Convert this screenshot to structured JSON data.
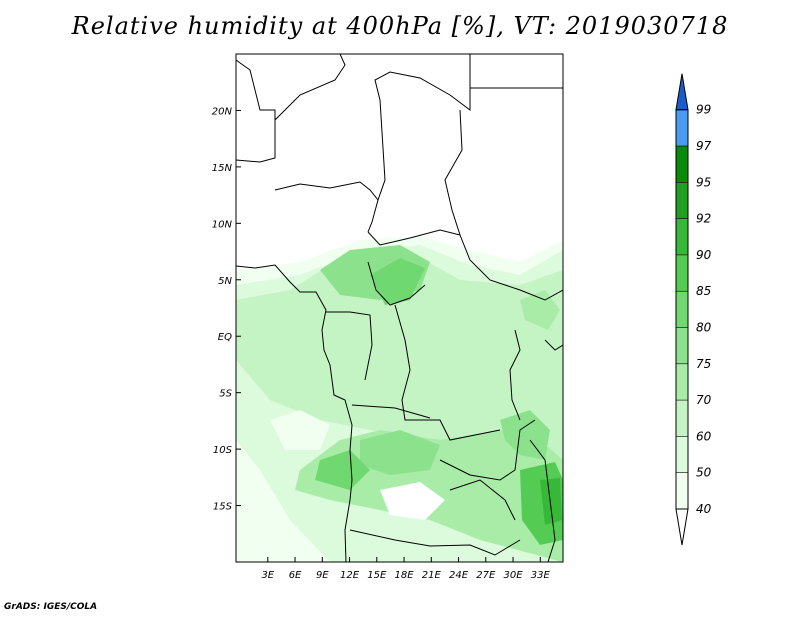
{
  "title": "Relative humidity at 400hPa [%], VT: 2019030718",
  "credit": "GrADS: IGES/COLA",
  "map": {
    "lon_range": [
      -0.5,
      35.5
    ],
    "lat_range": [
      -20,
      25
    ],
    "x_ticks": [
      {
        "value": 3,
        "label": "3E"
      },
      {
        "value": 6,
        "label": "6E"
      },
      {
        "value": 9,
        "label": "9E"
      },
      {
        "value": 12,
        "label": "12E"
      },
      {
        "value": 15,
        "label": "15E"
      },
      {
        "value": 18,
        "label": "18E"
      },
      {
        "value": 21,
        "label": "21E"
      },
      {
        "value": 24,
        "label": "24E"
      },
      {
        "value": 27,
        "label": "27E"
      },
      {
        "value": 30,
        "label": "30E"
      },
      {
        "value": 33,
        "label": "33E"
      }
    ],
    "y_ticks": [
      {
        "value": 20,
        "label": "20N"
      },
      {
        "value": 15,
        "label": "15N"
      },
      {
        "value": 10,
        "label": "10N"
      },
      {
        "value": 5,
        "label": "5N"
      },
      {
        "value": 0,
        "label": "EQ"
      },
      {
        "value": -5,
        "label": "5S"
      },
      {
        "value": -10,
        "label": "10S"
      },
      {
        "value": -15,
        "label": "15S"
      }
    ]
  },
  "colorbar": {
    "levels": [
      {
        "label": "40",
        "color": "#f0fff0"
      },
      {
        "label": "50",
        "color": "#dcfadc"
      },
      {
        "label": "60",
        "color": "#c4f4c4"
      },
      {
        "label": "70",
        "color": "#a8eca8"
      },
      {
        "label": "75",
        "color": "#8ce28c"
      },
      {
        "label": "80",
        "color": "#70d870"
      },
      {
        "label": "85",
        "color": "#54cc54"
      },
      {
        "label": "90",
        "color": "#38b838"
      },
      {
        "label": "92",
        "color": "#20a020"
      },
      {
        "label": "95",
        "color": "#0a8a0a"
      },
      {
        "label": "97",
        "color": "#4a9cf0"
      },
      {
        "label": "99",
        "color": "#2a78e0"
      }
    ],
    "top_color": "#1a5cc8",
    "bottom_color": "#ffffff"
  }
}
